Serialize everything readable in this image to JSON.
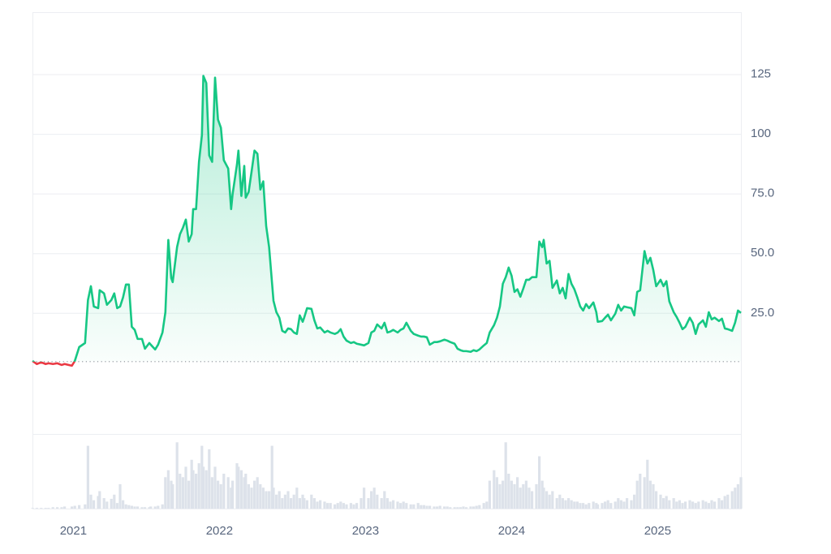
{
  "chart_data": {
    "type": "line",
    "x": [
      2020.72,
      2020.75,
      2020.78,
      2020.81,
      2020.83,
      2020.86,
      2020.89,
      2020.92,
      2020.94,
      2020.99,
      2021.01,
      2021.04,
      2021.08,
      2021.1,
      2021.12,
      2021.14,
      2021.17,
      2021.18,
      2021.21,
      2021.23,
      2021.26,
      2021.28,
      2021.3,
      2021.32,
      2021.34,
      2021.36,
      2021.38,
      2021.4,
      2021.42,
      2021.44,
      2021.47,
      2021.49,
      2021.52,
      2021.53,
      2021.56,
      2021.58,
      2021.61,
      2021.63,
      2021.65,
      2021.67,
      2021.68,
      2021.71,
      2021.73,
      2021.75,
      2021.77,
      2021.79,
      2021.81,
      2021.82,
      2021.84,
      2021.86,
      2021.88,
      2021.89,
      2021.91,
      2021.93,
      2021.95,
      2021.97,
      2021.99,
      2022.01,
      2022.03,
      2022.06,
      2022.08,
      2022.09,
      2022.12,
      2022.13,
      2022.15,
      2022.17,
      2022.18,
      2022.2,
      2022.22,
      2022.24,
      2022.26,
      2022.28,
      2022.3,
      2022.32,
      2022.34,
      2022.36,
      2022.37,
      2022.39,
      2022.41,
      2022.43,
      2022.45,
      2022.47,
      2022.49,
      2022.51,
      2022.53,
      2022.55,
      2022.57,
      2022.58,
      2022.6,
      2022.63,
      2022.65,
      2022.67,
      2022.69,
      2022.72,
      2022.74,
      2022.76,
      2022.79,
      2022.81,
      2022.83,
      2022.85,
      2022.87,
      2022.9,
      2022.92,
      2022.94,
      2022.97,
      2022.99,
      2023.02,
      2023.04,
      2023.06,
      2023.08,
      2023.11,
      2023.13,
      2023.15,
      2023.17,
      2023.19,
      2023.22,
      2023.24,
      2023.26,
      2023.28,
      2023.31,
      2023.33,
      2023.36,
      2023.38,
      2023.4,
      2023.42,
      2023.44,
      2023.47,
      2023.49,
      2023.51,
      2023.54,
      2023.56,
      2023.58,
      2023.61,
      2023.63,
      2023.65,
      2023.67,
      2023.69,
      2023.72,
      2023.74,
      2023.76,
      2023.78,
      2023.81,
      2023.83,
      2023.85,
      2023.88,
      2023.9,
      2023.92,
      2023.94,
      2023.96,
      2023.98,
      2024.0,
      2024.02,
      2024.04,
      2024.06,
      2024.08,
      2024.1,
      2024.12,
      2024.14,
      2024.17,
      2024.19,
      2024.21,
      2024.22,
      2024.24,
      2024.26,
      2024.28,
      2024.31,
      2024.33,
      2024.35,
      2024.37,
      2024.39,
      2024.41,
      2024.43,
      2024.45,
      2024.47,
      2024.49,
      2024.51,
      2024.53,
      2024.56,
      2024.58,
      2024.59,
      2024.62,
      2024.64,
      2024.66,
      2024.68,
      2024.71,
      2024.73,
      2024.75,
      2024.77,
      2024.79,
      2024.82,
      2024.84,
      2024.86,
      2024.88,
      2024.91,
      2024.93,
      2024.95,
      2024.97,
      2024.99,
      2025.02,
      2025.04,
      2025.06,
      2025.08,
      2025.11,
      2025.13,
      2025.15,
      2025.17,
      2025.19,
      2025.22,
      2025.24,
      2025.26,
      2025.28,
      2025.31,
      2025.33,
      2025.35,
      2025.37,
      2025.39,
      2025.42,
      2025.44,
      2025.46,
      2025.48,
      2025.51,
      2025.53,
      2025.55,
      2025.57
    ],
    "values": [
      4.9,
      3.6,
      4.3,
      3.6,
      3.9,
      3.6,
      3.9,
      3.2,
      3.6,
      2.9,
      4.9,
      10.7,
      12.4,
      30.4,
      36.2,
      27.7,
      27.0,
      34.5,
      33.2,
      28.4,
      30.4,
      33.2,
      27.0,
      27.7,
      31.5,
      36.9,
      36.9,
      19.2,
      17.9,
      14.1,
      14.1,
      10.0,
      12.4,
      11.7,
      9.7,
      11.7,
      16.8,
      25.3,
      55.6,
      39.6,
      37.9,
      52.6,
      58.0,
      60.7,
      64.1,
      54.9,
      58.0,
      68.5,
      68.5,
      88.3,
      99.5,
      124.3,
      121.3,
      91.0,
      88.3,
      123.6,
      106.0,
      102.6,
      89.0,
      85.5,
      68.5,
      74.7,
      87.2,
      93.0,
      74.0,
      86.6,
      73.3,
      75.7,
      84.2,
      93.0,
      91.7,
      76.7,
      80.1,
      61.4,
      52.6,
      37.6,
      30.1,
      25.3,
      23.0,
      17.5,
      16.8,
      18.5,
      18.2,
      16.8,
      16.2,
      24.0,
      21.3,
      23.0,
      27.0,
      26.7,
      21.9,
      18.5,
      18.9,
      16.8,
      17.5,
      16.8,
      16.2,
      16.8,
      18.2,
      15.1,
      13.4,
      12.4,
      12.8,
      12.1,
      11.7,
      11.4,
      12.4,
      16.8,
      17.5,
      20.2,
      18.5,
      20.9,
      16.8,
      17.2,
      17.9,
      16.8,
      17.9,
      18.5,
      20.9,
      17.5,
      16.2,
      15.5,
      15.1,
      15.1,
      14.8,
      11.7,
      12.8,
      12.8,
      13.1,
      13.8,
      13.4,
      12.8,
      12.1,
      10.0,
      9.4,
      9.0,
      9.0,
      8.7,
      9.4,
      9.0,
      9.7,
      11.4,
      12.4,
      16.8,
      19.9,
      23.0,
      27.7,
      37.2,
      40.0,
      44.0,
      40.6,
      33.8,
      34.9,
      31.8,
      35.2,
      38.9,
      38.9,
      40.0,
      40.0,
      54.9,
      52.6,
      55.6,
      45.7,
      46.8,
      35.5,
      38.6,
      33.2,
      35.5,
      31.1,
      41.3,
      37.2,
      34.9,
      31.5,
      27.7,
      26.0,
      28.7,
      27.0,
      29.4,
      25.3,
      21.3,
      21.6,
      23.0,
      24.3,
      21.9,
      24.7,
      28.4,
      26.0,
      27.7,
      27.4,
      27.0,
      24.0,
      33.8,
      34.5,
      50.9,
      45.7,
      48.1,
      43.0,
      36.2,
      38.9,
      36.2,
      38.3,
      29.8,
      25.3,
      23.3,
      20.9,
      18.2,
      19.2,
      23.0,
      20.9,
      16.2,
      20.2,
      21.9,
      19.2,
      25.3,
      22.3,
      23.0,
      21.6,
      22.6,
      18.5,
      18.2,
      17.5,
      20.9,
      26.0,
      25.0
    ],
    "volume": [
      1,
      1,
      1,
      1,
      1,
      2,
      2,
      2,
      3,
      3,
      4,
      5,
      6,
      90,
      20,
      12,
      18,
      25,
      15,
      10,
      14,
      20,
      8,
      35,
      12,
      6,
      5,
      4,
      3,
      3,
      2,
      2,
      2,
      3,
      3,
      4,
      6,
      45,
      55,
      40,
      35,
      95,
      50,
      45,
      60,
      40,
      70,
      55,
      50,
      65,
      90,
      60,
      55,
      85,
      45,
      60,
      40,
      35,
      50,
      45,
      30,
      40,
      65,
      60,
      55,
      45,
      50,
      35,
      30,
      40,
      45,
      35,
      30,
      25,
      25,
      90,
      30,
      20,
      25,
      15,
      20,
      25,
      15,
      20,
      30,
      15,
      20,
      15,
      12,
      20,
      15,
      10,
      12,
      10,
      8,
      8,
      6,
      8,
      10,
      8,
      6,
      8,
      6,
      8,
      15,
      30,
      15,
      25,
      30,
      20,
      15,
      25,
      15,
      10,
      12,
      10,
      8,
      10,
      8,
      6,
      6,
      8,
      5,
      5,
      4,
      4,
      3,
      3,
      4,
      3,
      3,
      2,
      2,
      2,
      2,
      3,
      2,
      3,
      3,
      4,
      5,
      8,
      10,
      40,
      55,
      45,
      35,
      40,
      95,
      50,
      40,
      35,
      45,
      30,
      35,
      40,
      30,
      25,
      35,
      75,
      40,
      30,
      25,
      20,
      25,
      15,
      20,
      15,
      12,
      15,
      12,
      10,
      10,
      8,
      8,
      6,
      8,
      10,
      8,
      6,
      8,
      10,
      12,
      8,
      10,
      15,
      12,
      10,
      15,
      12,
      20,
      40,
      50,
      45,
      70,
      40,
      35,
      25,
      20,
      15,
      18,
      12,
      15,
      10,
      12,
      8,
      10,
      12,
      10,
      8,
      10,
      12,
      10,
      8,
      12,
      10,
      15,
      12,
      18,
      20,
      25,
      30,
      35,
      45
    ],
    "vlim": [
      0,
      100
    ],
    "baseline": 4.6,
    "up_color": "#16c784",
    "down_color": "#ea3943",
    "volume_color": "#dde2ea",
    "xlim": [
      2020.72,
      2025.57
    ],
    "xticks": [
      2021,
      2022,
      2023,
      2024,
      2025
    ],
    "ylim": [
      -25.7,
      151
    ],
    "yticks": [
      {
        "value": 25,
        "label": "25.0"
      },
      {
        "value": 50,
        "label": "50.0"
      },
      {
        "value": 75,
        "label": "75.0"
      },
      100,
      125
    ],
    "grid": true
  }
}
